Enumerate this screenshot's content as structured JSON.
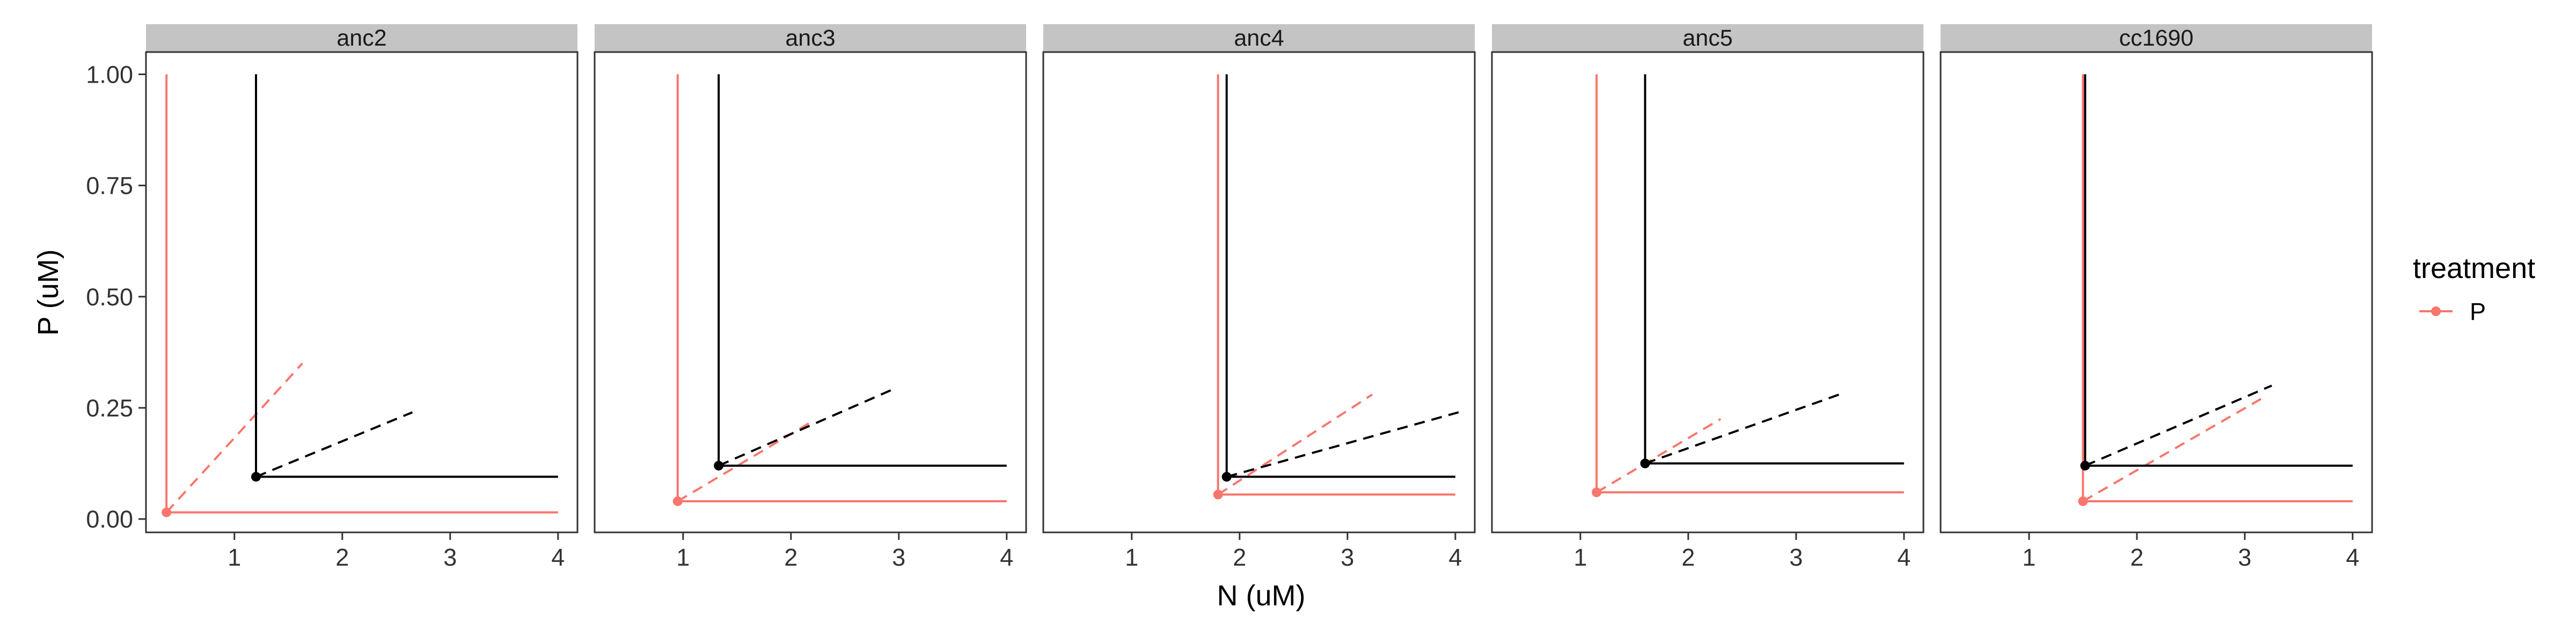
{
  "chart_data": {
    "type": "line",
    "xlabel": "N (uM)",
    "ylabel": "P (uM)",
    "xlim": [
      0.18,
      4.18
    ],
    "ylim": [
      -0.03,
      1.05
    ],
    "x_ticks": [
      1,
      2,
      3,
      4
    ],
    "y_ticks": [
      0.0,
      0.25,
      0.5,
      0.75,
      1.0
    ],
    "y_tick_labels": [
      "0.00",
      "0.25",
      "0.50",
      "0.75",
      "1.00"
    ],
    "grid": false,
    "legend": {
      "title": "treatment",
      "position": "right",
      "entries": [
        {
          "label": "P",
          "color": "#F8766D"
        }
      ]
    },
    "colors": {
      "treatment_P": "#F8766D",
      "other": "#000000"
    },
    "x_max_line": 4,
    "y_max_line": 1.0,
    "panels": [
      {
        "name": "anc2",
        "series": [
          {
            "color": "#F8766D",
            "point": {
              "x": 0.37,
              "y": 0.015
            },
            "dash_end": {
              "x": 1.63,
              "y": 0.35
            }
          },
          {
            "color": "#000000",
            "point": {
              "x": 1.2,
              "y": 0.095
            },
            "dash_end": {
              "x": 2.65,
              "y": 0.24
            }
          }
        ]
      },
      {
        "name": "anc3",
        "series": [
          {
            "color": "#F8766D",
            "point": {
              "x": 0.95,
              "y": 0.04
            },
            "dash_end": {
              "x": 2.2,
              "y": 0.22
            }
          },
          {
            "color": "#000000",
            "point": {
              "x": 1.33,
              "y": 0.12
            },
            "dash_end": {
              "x": 2.93,
              "y": 0.29
            }
          }
        ]
      },
      {
        "name": "anc4",
        "series": [
          {
            "color": "#F8766D",
            "point": {
              "x": 1.8,
              "y": 0.055
            },
            "dash_end": {
              "x": 3.23,
              "y": 0.28
            }
          },
          {
            "color": "#000000",
            "point": {
              "x": 1.88,
              "y": 0.095
            },
            "dash_end": {
              "x": 4.03,
              "y": 0.24
            }
          }
        ]
      },
      {
        "name": "anc5",
        "series": [
          {
            "color": "#F8766D",
            "point": {
              "x": 1.15,
              "y": 0.06
            },
            "dash_end": {
              "x": 2.3,
              "y": 0.225
            }
          },
          {
            "color": "#000000",
            "point": {
              "x": 1.6,
              "y": 0.125
            },
            "dash_end": {
              "x": 3.4,
              "y": 0.28
            }
          }
        ]
      },
      {
        "name": "cc1690",
        "series": [
          {
            "color": "#F8766D",
            "point": {
              "x": 1.5,
              "y": 0.04
            },
            "dash_end": {
              "x": 3.15,
              "y": 0.27
            }
          },
          {
            "color": "#000000",
            "point": {
              "x": 1.52,
              "y": 0.12
            },
            "dash_end": {
              "x": 3.25,
              "y": 0.3
            }
          }
        ]
      }
    ]
  }
}
